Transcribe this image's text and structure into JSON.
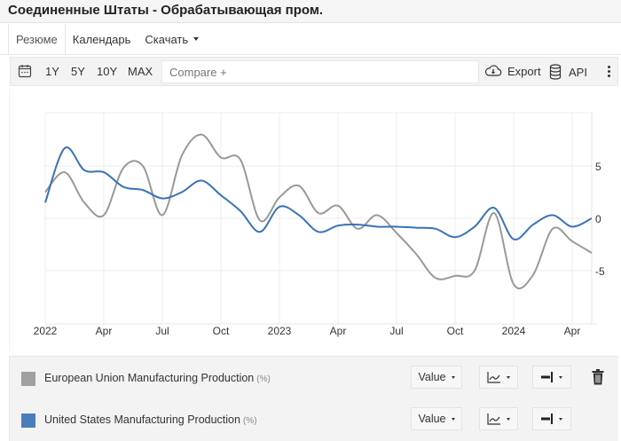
{
  "header": {
    "title": "Соединенные Штаты - Обрабатывающая пром."
  },
  "tabs": [
    {
      "label": "Резюме",
      "active": true
    },
    {
      "label": "Календарь",
      "active": false
    },
    {
      "label": "Скачать",
      "active": false,
      "dropdown": true
    }
  ],
  "toolbar": {
    "calendar_icon": "calendar-icon",
    "ranges": [
      "1Y",
      "5Y",
      "10Y",
      "MAX"
    ],
    "compare_placeholder": "Compare +",
    "export_label": "Export",
    "export_icon": "cloud-download-icon",
    "api_label": "API",
    "api_icon": "database-icon",
    "more_icon": "vertical-ellipsis-icon"
  },
  "legend": [
    {
      "name": "European Union Manufacturing Production",
      "unit": "(%)",
      "color": "#a0a0a0",
      "value_label": "Value",
      "chart_type_icon": "line-chart-icon",
      "axis_icon": "axis-right-icon",
      "deletable": true
    },
    {
      "name": "United States Manufacturing Production",
      "unit": "(%)",
      "color": "#4a7ebb",
      "value_label": "Value",
      "chart_type_icon": "line-chart-icon",
      "axis_icon": "axis-right-icon",
      "deletable": false
    }
  ],
  "colors": {
    "eu_line": "#999999",
    "us_line": "#3a72b8",
    "grid": "#ececec",
    "panel_bg": "#f3f3f3"
  },
  "chart_data": {
    "type": "line",
    "title": "",
    "xlabel": "",
    "ylabel": "",
    "ylim": [
      -10,
      10
    ],
    "y_ticks": [
      5,
      0,
      -5
    ],
    "y_axis_position": "right",
    "x_tick_labels": [
      "2022",
      "Apr",
      "Jul",
      "Oct",
      "2023",
      "Apr",
      "Jul",
      "Oct",
      "2024",
      "Apr"
    ],
    "x_tick_month_index": [
      0,
      3,
      6,
      9,
      12,
      15,
      18,
      21,
      24,
      27
    ],
    "grid": true,
    "legend_position": "bottom",
    "x": [
      "2022-01",
      "2022-02",
      "2022-03",
      "2022-04",
      "2022-05",
      "2022-06",
      "2022-07",
      "2022-08",
      "2022-09",
      "2022-10",
      "2022-11",
      "2022-12",
      "2023-01",
      "2023-02",
      "2023-03",
      "2023-04",
      "2023-05",
      "2023-06",
      "2023-07",
      "2023-08",
      "2023-09",
      "2023-10",
      "2023-11",
      "2023-12",
      "2024-01",
      "2024-02",
      "2024-03",
      "2024-04",
      "2024-05"
    ],
    "series": [
      {
        "name": "European Union Manufacturing Production",
        "color": "#999999",
        "values": [
          2.5,
          4.4,
          1.5,
          0.3,
          4.8,
          5.0,
          0.3,
          6.0,
          8.0,
          5.8,
          5.6,
          -0.2,
          2.0,
          3.1,
          0.5,
          1.2,
          -1.0,
          0.3,
          -1.4,
          -3.4,
          -5.7,
          -5.5,
          -5.0,
          0.5,
          -6.3,
          -5.4,
          -1.0,
          -2.2,
          -3.3
        ]
      },
      {
        "name": "United States Manufacturing Production",
        "color": "#3a72b8",
        "values": [
          1.5,
          6.7,
          4.6,
          4.4,
          3.0,
          2.7,
          1.9,
          2.5,
          3.6,
          2.2,
          0.7,
          -1.3,
          1.1,
          0.3,
          -1.3,
          -0.7,
          -0.6,
          -0.8,
          -0.8,
          -0.9,
          -1.0,
          -1.8,
          -0.8,
          1.0,
          -2.0,
          -0.6,
          0.3,
          -0.8,
          0.0
        ]
      }
    ]
  }
}
